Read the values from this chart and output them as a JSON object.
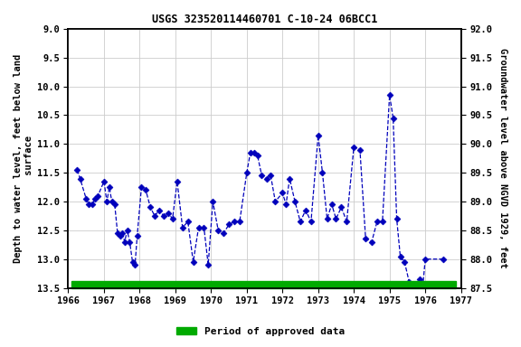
{
  "title": "USGS 323520114460701 C-10-24 06BCC1",
  "ylabel_left": "Depth to water level, feet below land\n surface",
  "ylabel_right": "Groundwater level above NGVD 1929, feet",
  "ylim_left": [
    9.0,
    13.5
  ],
  "ylim_right": [
    92.0,
    87.5
  ],
  "xlim": [
    1966,
    1977
  ],
  "xticks": [
    1966,
    1967,
    1968,
    1969,
    1970,
    1971,
    1972,
    1973,
    1974,
    1975,
    1976,
    1977
  ],
  "yticks_left": [
    9.0,
    9.5,
    10.0,
    10.5,
    11.0,
    11.5,
    12.0,
    12.5,
    13.0,
    13.5
  ],
  "yticks_right": [
    92.0,
    91.5,
    91.0,
    90.5,
    90.0,
    89.5,
    89.0,
    88.5,
    88.0,
    87.5
  ],
  "line_color": "#0000BB",
  "marker_color": "#0000BB",
  "legend_color": "#00AA00",
  "legend_label": "Period of approved data",
  "background_color": "#ffffff",
  "grid_color": "#cccccc",
  "data_x": [
    1966.25,
    1966.33,
    1966.5,
    1966.58,
    1966.67,
    1966.75,
    1966.83,
    1967.0,
    1967.08,
    1967.15,
    1967.22,
    1967.3,
    1967.38,
    1967.45,
    1967.52,
    1967.58,
    1967.65,
    1967.72,
    1967.8,
    1967.87,
    1967.93,
    1968.05,
    1968.17,
    1968.3,
    1968.42,
    1968.55,
    1968.67,
    1968.8,
    1968.92,
    1969.05,
    1969.2,
    1969.35,
    1969.5,
    1969.65,
    1969.8,
    1969.92,
    1970.05,
    1970.2,
    1970.35,
    1970.5,
    1970.65,
    1970.8,
    1971.0,
    1971.1,
    1971.2,
    1971.3,
    1971.42,
    1971.55,
    1971.67,
    1971.8,
    1972.0,
    1972.1,
    1972.2,
    1972.35,
    1972.5,
    1972.65,
    1972.8,
    1973.0,
    1973.12,
    1973.25,
    1973.38,
    1973.5,
    1973.65,
    1973.8,
    1974.0,
    1974.17,
    1974.33,
    1974.5,
    1974.65,
    1974.8,
    1975.0,
    1975.1,
    1975.2,
    1975.3,
    1975.42,
    1975.55,
    1975.65,
    1975.75,
    1975.85,
    1975.92,
    1976.0,
    1976.5
  ],
  "data_y": [
    11.45,
    11.6,
    11.95,
    12.05,
    12.05,
    11.95,
    11.9,
    11.65,
    12.0,
    11.75,
    12.0,
    12.05,
    12.55,
    12.6,
    12.55,
    12.7,
    12.5,
    12.7,
    13.05,
    13.1,
    12.6,
    11.75,
    11.8,
    12.1,
    12.25,
    12.15,
    12.25,
    12.2,
    12.3,
    11.65,
    12.45,
    12.35,
    13.05,
    12.45,
    12.45,
    13.1,
    12.0,
    12.5,
    12.55,
    12.4,
    12.35,
    12.35,
    11.5,
    11.15,
    11.15,
    11.2,
    11.55,
    11.6,
    11.55,
    12.0,
    11.85,
    12.05,
    11.6,
    12.0,
    12.35,
    12.15,
    12.35,
    10.85,
    11.5,
    12.3,
    12.05,
    12.3,
    12.1,
    12.35,
    11.05,
    11.1,
    12.65,
    12.7,
    12.35,
    12.35,
    10.15,
    10.55,
    12.3,
    12.95,
    13.05,
    13.4,
    13.45,
    13.55,
    13.35,
    13.55,
    13.0,
    13.0
  ],
  "bar_x_start": 1966.1,
  "bar_x_end": 1976.85
}
